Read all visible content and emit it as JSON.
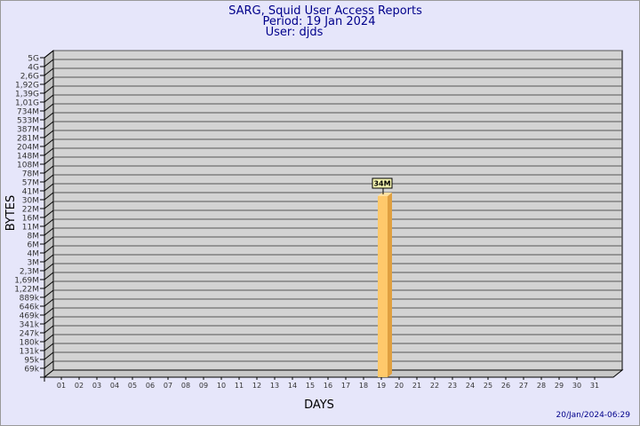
{
  "title": "SARG, Squid User Access Reports",
  "period": "Period: 19 Jan 2024",
  "user": "User: djds",
  "footer": "20/Jan/2024-06:29",
  "colors": {
    "background": "#e6e6fa",
    "plot": "#d3d3d3",
    "bar_front": "#ffc96b",
    "bar_side": "#e0a040",
    "title": "#00008b",
    "label_box": "#f5f5b0"
  },
  "chart_data": {
    "type": "bar",
    "xlabel": "DAYS",
    "ylabel": "BYTES",
    "y_scale": "log",
    "y_ticks": [
      "5G",
      "4G",
      "2,6G",
      "1,92G",
      "1,39G",
      "1,01G",
      "734M",
      "533M",
      "387M",
      "281M",
      "204M",
      "148M",
      "108M",
      "78M",
      "57M",
      "41M",
      "30M",
      "22M",
      "16M",
      "11M",
      "8M",
      "6M",
      "4M",
      "3M",
      "2,3M",
      "1,69M",
      "1,22M",
      "889k",
      "646k",
      "469k",
      "341k",
      "247k",
      "180k",
      "131k",
      "95k",
      "69k"
    ],
    "categories": [
      "01",
      "02",
      "03",
      "04",
      "05",
      "06",
      "07",
      "08",
      "09",
      "10",
      "11",
      "12",
      "13",
      "14",
      "15",
      "16",
      "17",
      "18",
      "19",
      "20",
      "21",
      "22",
      "23",
      "24",
      "25",
      "26",
      "27",
      "28",
      "29",
      "30",
      "31"
    ],
    "bars": [
      {
        "day": "19",
        "value_label": "34M"
      }
    ],
    "grid": true,
    "style": "3d"
  }
}
